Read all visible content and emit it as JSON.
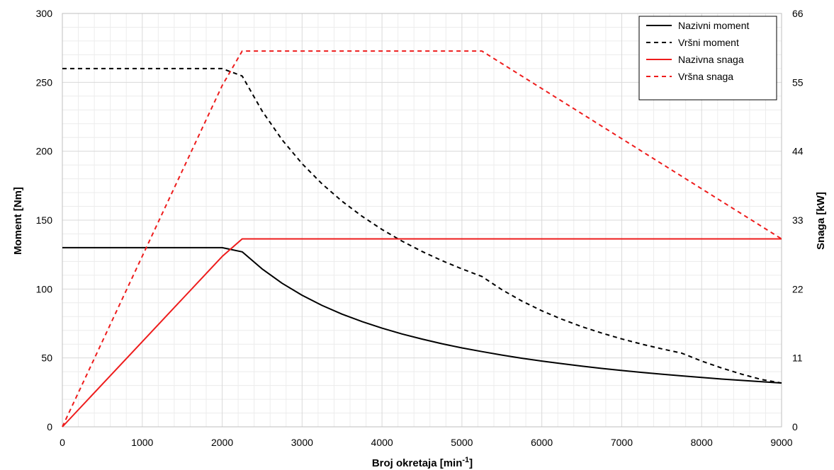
{
  "chart_data": {
    "type": "line",
    "xlabel": "Broj okretaja [min",
    "xlabel_sup": "-1",
    "xlabel_end": "]",
    "ylabel_left": "Moment [Nm]",
    "ylabel_right": "Snaga [kW]",
    "xlim": [
      0,
      9000
    ],
    "ylim_left": [
      0,
      300
    ],
    "ylim_right": [
      0,
      66
    ],
    "x_ticks": [
      0,
      1000,
      2000,
      3000,
      4000,
      5000,
      6000,
      7000,
      8000,
      9000
    ],
    "y_left_ticks": [
      0,
      50,
      100,
      150,
      200,
      250,
      300
    ],
    "y_right_ticks": [
      0,
      11,
      22,
      33,
      44,
      55,
      66
    ],
    "grid": true,
    "legend_position": "top-right",
    "colors": {
      "black": "#000000",
      "red": "#ee1c1c",
      "grid": "#d9d9d9"
    },
    "series": [
      {
        "name": "Nazivni moment",
        "axis": "left",
        "color": "#000000",
        "dash": "solid",
        "x": [
          0,
          2000,
          2250,
          2500,
          2750,
          3000,
          3250,
          3500,
          3750,
          4000,
          4250,
          4500,
          4750,
          5000,
          5250,
          5500,
          5750,
          6000,
          6250,
          6500,
          6750,
          7000,
          7250,
          7500,
          7750,
          8000,
          8250,
          8500,
          8750,
          9000
        ],
        "y": [
          130,
          130,
          127,
          114.6,
          104.2,
          95.5,
          88.1,
          81.8,
          76.4,
          71.6,
          67.4,
          63.7,
          60.3,
          57.3,
          54.6,
          52.1,
          49.8,
          47.7,
          45.8,
          44.1,
          42.4,
          40.9,
          39.5,
          38.2,
          37.0,
          35.8,
          34.7,
          33.7,
          32.7,
          31.8
        ]
      },
      {
        "name": "Vršni moment",
        "axis": "left",
        "color": "#000000",
        "dash": "dashed",
        "x": [
          0,
          2000,
          2250,
          2500,
          2750,
          3000,
          3250,
          3500,
          3750,
          4000,
          4250,
          4500,
          4750,
          5000,
          5250,
          5500,
          5750,
          6000,
          6250,
          6500,
          6750,
          7000,
          7250,
          7500,
          7750,
          8000,
          8250,
          8500,
          8750,
          9000
        ],
        "y": [
          260,
          260,
          254.6,
          229.2,
          208.3,
          191.0,
          176.3,
          163.7,
          152.8,
          143.2,
          134.8,
          127.3,
          120.6,
          114.6,
          109.1,
          99.5,
          91.3,
          84.2,
          78.1,
          72.7,
          68.0,
          63.8,
          60.0,
          56.6,
          53.5,
          47.7,
          42.7,
          38.2,
          34.3,
          31.8
        ]
      },
      {
        "name": "Nazivna snaga",
        "axis": "right",
        "color": "#ee1c1c",
        "dash": "solid",
        "x": [
          0,
          500,
          1000,
          1500,
          2000,
          2250,
          9000
        ],
        "y": [
          0,
          6.8,
          13.6,
          20.4,
          27.2,
          30,
          30
        ]
      },
      {
        "name": "Vršna snaga",
        "axis": "right",
        "color": "#ee1c1c",
        "dash": "dashed",
        "x": [
          0,
          2000,
          2250,
          5250,
          9000
        ],
        "y": [
          0,
          54.5,
          60,
          60,
          30
        ]
      }
    ]
  }
}
